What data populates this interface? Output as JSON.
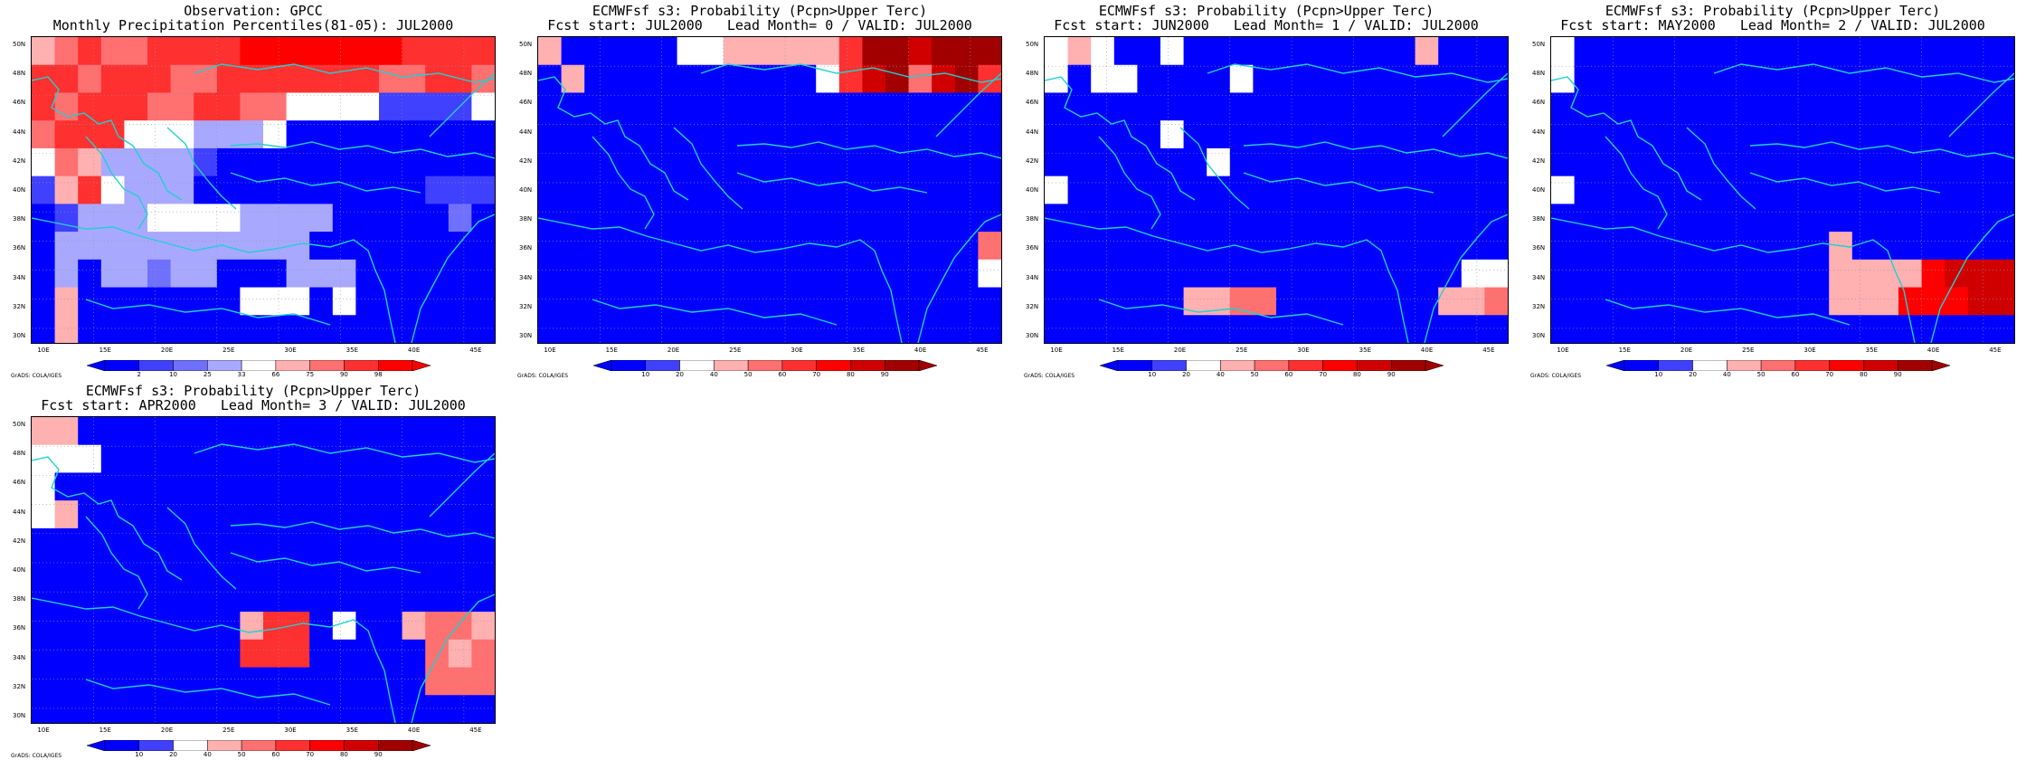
{
  "credit": "GrADS: COLA/IGES",
  "lat_labels": [
    "50N",
    "48N",
    "46N",
    "44N",
    "42N",
    "40N",
    "38N",
    "36N",
    "34N",
    "32N",
    "30N"
  ],
  "lon_labels": [
    "10E",
    "15E",
    "20E",
    "25E",
    "30E",
    "35E",
    "40E",
    "45E"
  ],
  "colors": {
    "obs": [
      "#0000ff",
      "#4040ff",
      "#7070ff",
      "#a8a8ff",
      "#ffffff",
      "#ffb0b0",
      "#ff7070",
      "#ff3030",
      "#ff0000"
    ],
    "prob": [
      "#0000ff",
      "#4040ff",
      "#ffffff",
      "#ffb0b0",
      "#ff7070",
      "#ff3030",
      "#ff0000",
      "#d00000",
      "#a00000"
    ],
    "coast": "#20d0d0"
  },
  "panels": [
    {
      "title1": "Observation: GPCC",
      "title2": "Monthly Precipitation Percentiles(81-05): JUL2000",
      "colorbar_labels": [
        "2",
        "10",
        "25",
        "33",
        "66",
        "75",
        "90",
        "98"
      ],
      "palette": "obs",
      "grid": [
        "56766777788888887777",
        "77677766777777766776",
        "76777667766444411114",
        "67774443334000000000",
        "46533331000000000000",
        "15743330000000000111",
        "01333444433330000020",
        "03333333333300000000",
        "03033233000333000000",
        "05000000044404000000",
        "05000000000000000000"
      ]
    },
    {
      "title1": "ECMWFsf s3: Probability (Pcpn>Upper Terc)",
      "title2": "Fcst start: JUL2000   Lead Month= 0 / VALID: JUL2000",
      "colorbar_labels": [
        "10",
        "20",
        "40",
        "50",
        "60",
        "70",
        "80",
        "90"
      ],
      "palette": "prob",
      "grid": [
        "30000022333335887888",
        "03000000000025784785",
        "00000000000000000000",
        "00000000000000000000",
        "00000000000000000000",
        "00000000000000000000",
        "00000000000000000000",
        "00000000000000000004",
        "00000000000000000002",
        "00000000000000000000",
        "00000000000000000000"
      ]
    },
    {
      "title1": "ECMWFsf s3: Probability (Pcpn>Upper Terc)",
      "title2": "Fcst start: JUN2000   Lead Month= 1 / VALID: JUL2000",
      "colorbar_labels": [
        "10",
        "20",
        "40",
        "50",
        "60",
        "70",
        "80",
        "90"
      ],
      "palette": "prob",
      "grid": [
        "23200200000000003000",
        "20220000200000000000",
        "00000000000000000000",
        "00000200000000000000",
        "00000002000000000000",
        "20000000000000000000",
        "00000000000000000000",
        "00000000000000000000",
        "00000000000000000022",
        "00000033440000000334",
        "00000000000000000000"
      ]
    },
    {
      "title1": "ECMWFsf s3: Probability (Pcpn>Upper Terc)",
      "title2": "Fcst start: MAY2000   Lead Month= 2 / VALID: JUL2000",
      "colorbar_labels": [
        "10",
        "20",
        "40",
        "50",
        "60",
        "70",
        "80",
        "90"
      ],
      "palette": "prob",
      "grid": [
        "20000000000000000000",
        "20000000000000000000",
        "00000000000000000000",
        "00000000000000000000",
        "00000000000000000000",
        "20000000000000000000",
        "00000000000000000000",
        "00000000000030000000",
        "00000000000033336777",
        "00000000000033366677",
        "00000000000000000000"
      ]
    },
    {
      "title1": "ECMWFsf s3: Probability (Pcpn>Upper Terc)",
      "title2": "Fcst start: APR2000   Lead Month= 3 / VALID: JUL2000",
      "colorbar_labels": [
        "10",
        "20",
        "40",
        "50",
        "60",
        "70",
        "80",
        "90"
      ],
      "palette": "prob",
      "grid": [
        "33000000000000000000",
        "22200000000000000000",
        "20000000000000000000",
        "23000000000000000000",
        "00000000000000000000",
        "00000000000000000000",
        "00000000000000000000",
        "00000000035502003443",
        "00000000055500000434",
        "00000000000000000444",
        "00000000000000000000"
      ]
    }
  ]
}
